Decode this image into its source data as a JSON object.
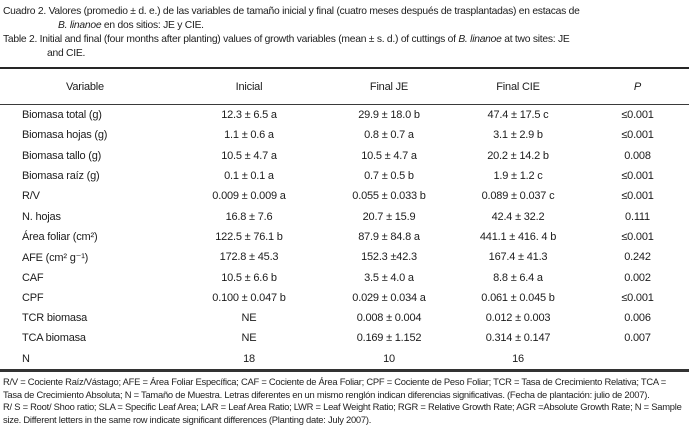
{
  "page": {
    "background": "#ffffff",
    "text_color": "#1c1c1c",
    "rule_color": "#2b2b2b"
  },
  "caption_es": {
    "line1": "Cuadro 2. Valores (promedio ± d. e.) de las variables de tamaño inicial y final (cuatro meses después de trasplantadas) en estacas de",
    "line2_species": "B. linanoe",
    "line2_rest": " en dos sitios: JE y CIE."
  },
  "caption_en": {
    "line1_pre": "Table 2. Initial and final (four months after planting) values of growth variables (mean ± s. d.) of cuttings of ",
    "line1_species": "B. linanoe",
    "line1_post": " at two sites: JE",
    "line2": "and CIE."
  },
  "table": {
    "columns": [
      "Variable",
      "Inicial",
      "Final JE",
      "Final CIE",
      "P"
    ],
    "rows": [
      [
        "Biomasa total (g)",
        "12.3 ± 6.5 a",
        "29.9 ± 18.0 b",
        "47.4 ± 17.5 c",
        "≤0.001"
      ],
      [
        "Biomasa hojas (g)",
        "1.1 ± 0.6 a",
        "0.8 ± 0.7 a",
        "3.1 ± 2.9 b",
        "≤0.001"
      ],
      [
        "Biomasa tallo (g)",
        "10.5 ± 4.7 a",
        "10.5 ± 4.7 a",
        "20.2 ± 14.2 b",
        "0.008"
      ],
      [
        "Biomasa raíz (g)",
        "0.1 ± 0.1 a",
        "0.7 ± 0.5 b",
        "1.9 ± 1.2 c",
        "≤0.001"
      ],
      [
        "R/V",
        "0.009 ± 0.009 a",
        "0.055 ± 0.033 b",
        "0.089 ± 0.037 c",
        "≤0.001"
      ],
      [
        "N. hojas",
        "16.8 ± 7.6",
        "20.7 ± 15.9",
        "42.4 ± 32.2",
        "0.111"
      ],
      [
        "Área foliar (cm²)",
        "122.5 ± 76.1 b",
        "87.9 ± 84.8 a",
        "441.1 ± 416. 4 b",
        "≤0.001"
      ],
      [
        "AFE (cm² g⁻¹)",
        "172.8 ± 45.3",
        "152.3 ±42.3",
        "167.4 ± 41.3",
        "0.242"
      ],
      [
        "CAF",
        "10.5 ± 6.6 b",
        "3.5 ± 4.0 a",
        "8.8 ± 6.4 a",
        "0.002"
      ],
      [
        "CPF",
        "0.100 ± 0.047 b",
        "0.029 ± 0.034 a",
        "0.061 ± 0.045 b",
        "≤0.001"
      ],
      [
        "TCR biomasa",
        "NE",
        "0.008 ± 0.004",
        "0.012 ± 0.003",
        "0.006"
      ],
      [
        "TCA biomasa",
        "NE",
        "0.169 ± 1.152",
        "0.314 ± 0.147",
        "0.007"
      ],
      [
        "N",
        "18",
        "10",
        "16",
        ""
      ]
    ]
  },
  "footnotes": {
    "lines": [
      "R/V = Cociente Raíz/Vástago; AFE = Área Foliar Específica; CAF = Cociente de Área Foliar; CPF = Cociente de Peso Foliar; TCR = Tasa de Crecimiento Relativa; TCA =",
      "Tasa de Crecimiento Absoluta; N = Tamaño de Muestra. Letras diferentes en un mismo renglón indican diferencias significativas. (Fecha de plantación: julio de 2007).",
      "R/ S = Root/ Shoo ratio; SLA = Specific Leaf Area; LAR = Leaf Area Ratio; LWR = Leaf Weight Ratio; RGR = Relative Growth Rate; AGR =Absolute Growth Rate; N = Sample",
      "size. Different letters in the same row indicate significant differences (Planting date: July 2007)."
    ]
  }
}
